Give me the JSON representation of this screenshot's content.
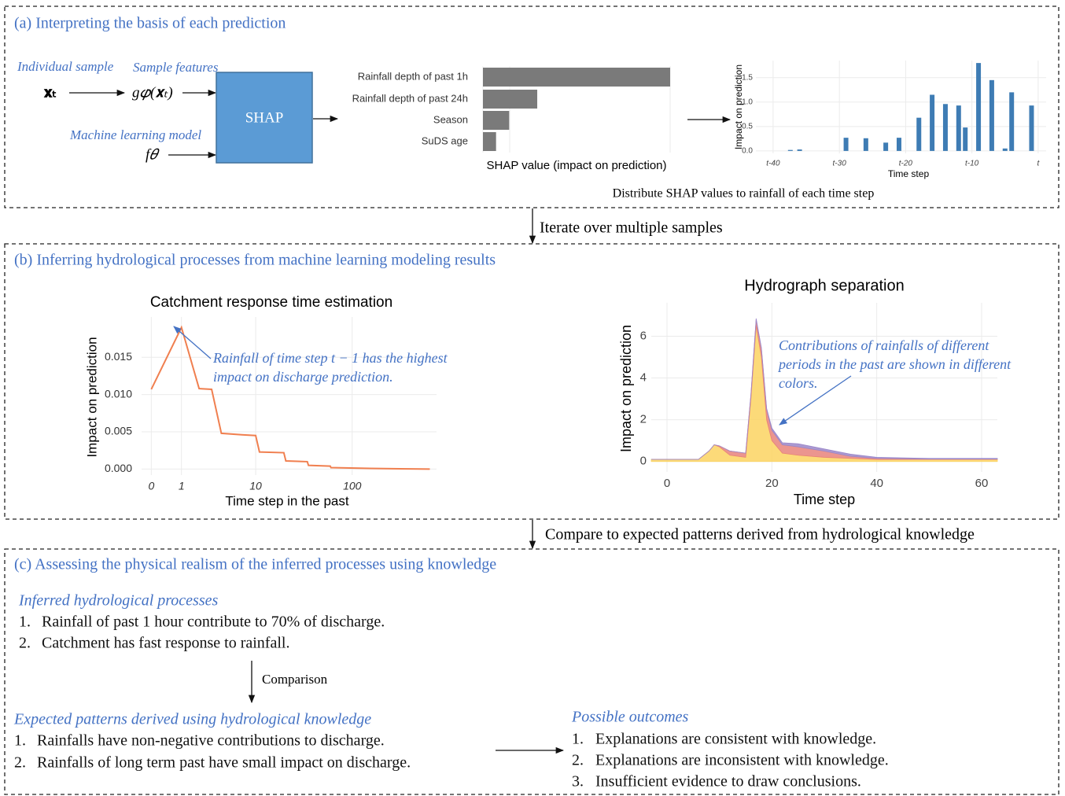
{
  "panel_a": {
    "title": "(a) Interpreting the basis of each prediction",
    "individual_sample": "Individual sample",
    "sample_features": "Sample features",
    "ml_model": "Machine learning model",
    "x_t": "𝐱ₜ",
    "g_x": "g𝜑(𝐱ₜ)",
    "f": "f𝜃",
    "shap": "SHAP",
    "importance_chart": {
      "type": "bar",
      "categories": [
        "Rainfall depth of past 1h",
        "Rainfall depth of past 24h",
        "Season",
        "SuDS age"
      ],
      "values": [
        1.0,
        0.29,
        0.14,
        0.07
      ],
      "color": "#7a7a7a",
      "x_label": "SHAP value (impact on prediction)"
    },
    "time_chart": {
      "type": "bar",
      "color": "#3e7cb4",
      "x": [
        -37.4,
        -36,
        -29,
        -26,
        -23,
        -21,
        -18,
        -16,
        -14,
        -12,
        -11,
        -9,
        -7,
        -5,
        -4,
        -1
      ],
      "values": [
        0.02,
        0.03,
        0.27,
        0.26,
        0.17,
        0.27,
        0.68,
        1.15,
        0.96,
        0.93,
        0.48,
        1.8,
        1.45,
        0.05,
        1.2,
        0.93
      ],
      "xlim": [
        -42.6,
        1.2
      ],
      "ylim": [
        -0.05,
        1.85
      ],
      "xticks": [
        {
          "value": -40,
          "label": "t-40"
        },
        {
          "value": -30,
          "label": "t-30"
        },
        {
          "value": -20,
          "label": "t-20"
        },
        {
          "value": -10,
          "label": "t-10"
        },
        {
          "value": 0,
          "label": "t"
        }
      ],
      "yticks": [
        {
          "value": 0,
          "label": "0.0"
        },
        0.5,
        {
          "value": 1,
          "label": "1.0"
        },
        1.5
      ],
      "y_label": "Impact on prediction",
      "x_label": "Time step"
    },
    "caption": "Distribute SHAP values to rainfall of each time step"
  },
  "arrow_1": "Iterate over multiple samples",
  "panel_b": {
    "title": "(b) Inferring hydrological processes from machine learning modeling results",
    "catchment_chart": {
      "type": "line",
      "title": "Catchment response time estimation",
      "x_scale": "log",
      "color": "#f07f4f",
      "x": [
        0,
        1,
        2,
        3,
        4,
        7,
        10,
        11,
        20,
        21,
        35,
        36,
        60,
        61,
        150,
        600
      ],
      "values": [
        0.0107,
        0.019,
        0.0108,
        0.0107,
        0.0048,
        0.0046,
        0.0045,
        0.0023,
        0.0022,
        0.0011,
        0.001,
        0.0005,
        0.0004,
        0.0002,
        0.0001,
        0.0
      ],
      "xlim": [
        -0.2,
        700
      ],
      "ylim": [
        -0.0008,
        0.0204
      ],
      "xticks": [
        0,
        1,
        10,
        100
      ],
      "yticks": [
        {
          "value": 0,
          "label": "0.000"
        },
        {
          "value": 0.005,
          "label": "0.005"
        },
        {
          "value": 0.01,
          "label": "0.010"
        },
        {
          "value": 0.015,
          "label": "0.015"
        }
      ],
      "y_label": "Impact on prediction",
      "x_label": "Time step in the past",
      "annotation": [
        "Rainfall of time step t − 1 has the highest",
        "impact on discharge prediction."
      ]
    },
    "hydrograph_chart": {
      "type": "area",
      "title": "Hydrograph separation",
      "x": [
        -3,
        6,
        8,
        9,
        10,
        12,
        15,
        16,
        17,
        18,
        19,
        20,
        22,
        25,
        30,
        35,
        40,
        50,
        60,
        63
      ],
      "series": [
        {
          "color": "#fcd462",
          "values": [
            0.1,
            0.1,
            0.5,
            0.8,
            0.7,
            0.3,
            0.2,
            3.0,
            6.5,
            5.0,
            2.0,
            1.0,
            0.4,
            0.3,
            0.2,
            0.15,
            0.1,
            0.1,
            0.1,
            0.1
          ]
        },
        {
          "color": "#e8837b",
          "values": [
            0,
            0,
            0,
            0,
            0.05,
            0.2,
            0.2,
            0.2,
            0.3,
            0.4,
            0.5,
            0.5,
            0.4,
            0.4,
            0.3,
            0.1,
            0.05,
            0.02,
            0.02,
            0.02
          ]
        },
        {
          "color": "#9b87c9",
          "values": [
            0,
            0,
            0,
            0,
            0,
            0,
            0,
            0,
            0.05,
            0.05,
            0.05,
            0.1,
            0.1,
            0.15,
            0.1,
            0.1,
            0.05,
            0.03,
            0.03,
            0.03
          ]
        }
      ],
      "xlim": [
        -3,
        63
      ],
      "ylim": [
        -0.5,
        7.6
      ],
      "xticks": [
        0,
        20,
        40,
        60
      ],
      "yticks": [
        0,
        2,
        4,
        6
      ],
      "y_label": "Impact on prediction",
      "x_label": "Time step",
      "annotation": [
        "Contributions of rainfalls of different",
        "periods in the past are shown in different",
        "colors."
      ]
    }
  },
  "arrow_2": "Compare to expected patterns derived from hydrological knowledge",
  "panel_c": {
    "title": "(c) Assessing the physical realism of the inferred processes using knowledge",
    "inferred": {
      "heading": "Inferred hydrological processes",
      "items": [
        {
          "number": "1.",
          "text": "Rainfall of past 1 hour contribute to 70% of discharge."
        },
        {
          "number": "2.",
          "text": "Catchment has fast response to rainfall."
        }
      ]
    },
    "comparison": "Comparison",
    "expected": {
      "heading": "Expected patterns derived using hydrological knowledge",
      "items": [
        {
          "number": "1.",
          "text": "Rainfalls have non-negative contributions to discharge."
        },
        {
          "number": "2.",
          "text": "Rainfalls of long term past have small impact on discharge."
        }
      ]
    },
    "outcomes": {
      "heading": "Possible outcomes",
      "items": [
        {
          "number": "1.",
          "text": "Explanations are consistent with knowledge."
        },
        {
          "number": "2.",
          "text": "Explanations are inconsistent with knowledge."
        },
        {
          "number": "3.",
          "text": "Insufficient evidence to draw conclusions."
        }
      ]
    }
  }
}
